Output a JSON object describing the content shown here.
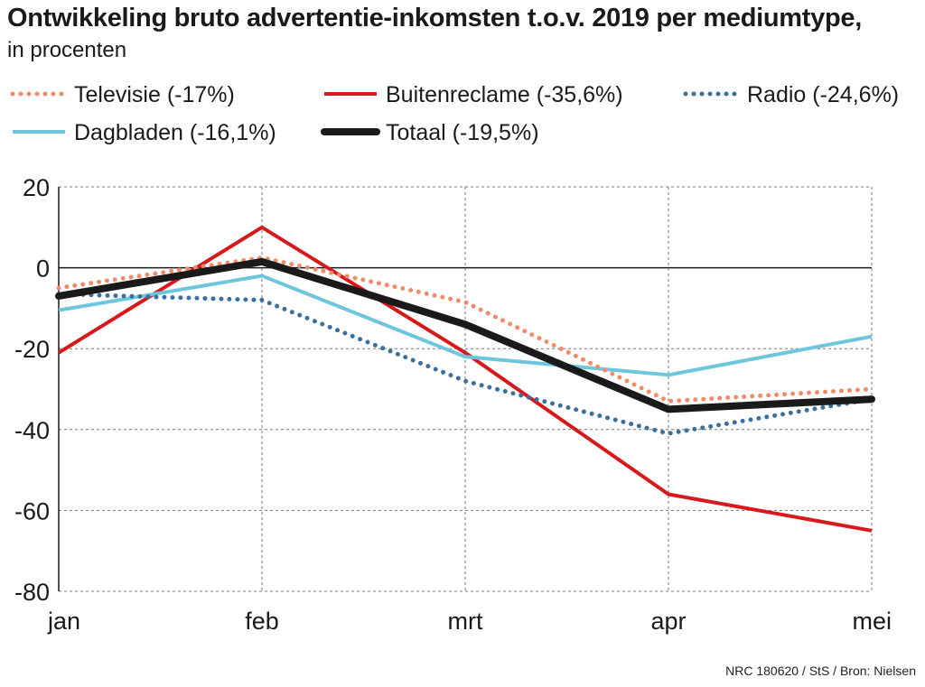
{
  "title": "Ontwikkeling bruto advertentie-inkomsten t.o.v. 2019 per mediumtype,",
  "subtitle": "in procenten",
  "source": "NRC 180620 / StS / Bron: Nielsen",
  "chart_data": {
    "type": "line",
    "categories": [
      "jan",
      "feb",
      "mrt",
      "apr",
      "mei"
    ],
    "yticks": [
      20,
      0,
      -20,
      -40,
      -60,
      -80
    ],
    "ylim": [
      -80,
      20
    ],
    "grid": true,
    "legend_position": "top",
    "series": [
      {
        "name": "Televisie (-17%)",
        "color": "#f08c6a",
        "style": "dotted",
        "values": [
          -5,
          2.5,
          -8.5,
          -33,
          -30
        ]
      },
      {
        "name": "Buitenreclame (-35,6%)",
        "color": "#d7191c",
        "style": "solid",
        "values": [
          -21,
          10,
          -21,
          -56,
          -65
        ]
      },
      {
        "name": "Radio (-24,6%)",
        "color": "#3a6f9e",
        "style": "dotted",
        "values": [
          -6.5,
          -8,
          -28,
          -41,
          -32.5
        ]
      },
      {
        "name": "Dagbladen (-16,1%)",
        "color": "#6ec6dc",
        "style": "solid",
        "values": [
          -10.5,
          -2,
          -22,
          -26.5,
          -17
        ]
      },
      {
        "name": "Totaal (-19,5%)",
        "color": "#1a1a1a",
        "style": "bold",
        "values": [
          -7,
          1.5,
          -14,
          -35,
          -32.5
        ]
      }
    ]
  }
}
